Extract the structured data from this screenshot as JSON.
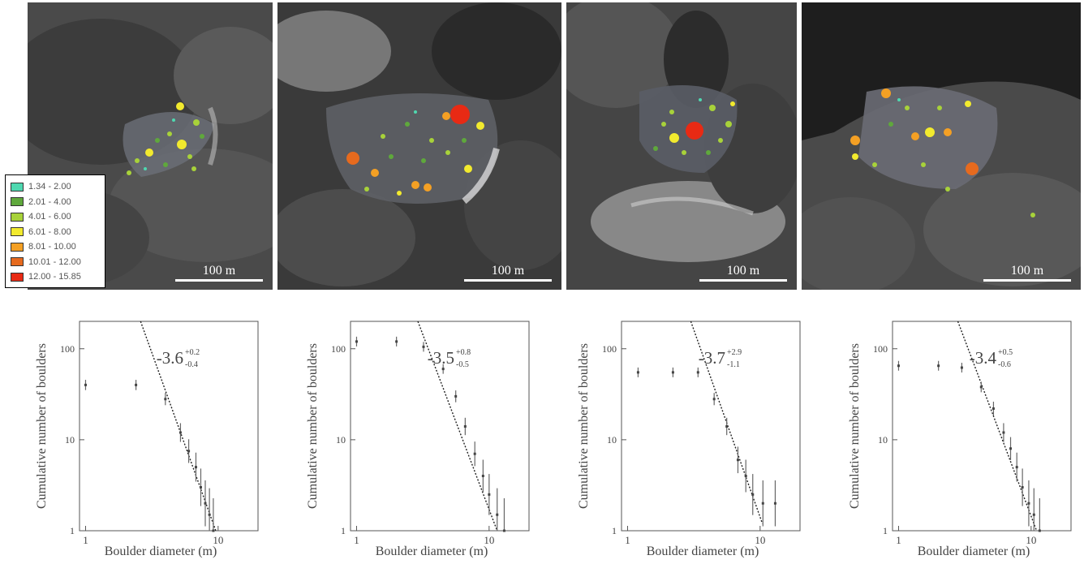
{
  "legend": {
    "items": [
      {
        "label": "1.34 - 2.00",
        "color": "#4fd8b0"
      },
      {
        "label": "2.01 - 4.00",
        "color": "#5fa83c"
      },
      {
        "label": "4.01 - 6.00",
        "color": "#a8d23a"
      },
      {
        "label": "6.01 - 8.00",
        "color": "#f2ea2e"
      },
      {
        "label": "8.01 - 10.00",
        "color": "#f4a024"
      },
      {
        "label": "10.01 - 12.00",
        "color": "#e66a1e"
      },
      {
        "label": "12.00 - 15.85",
        "color": "#e82a14"
      }
    ]
  },
  "panels": [
    {
      "scale_label": "100 m"
    },
    {
      "scale_label": "100 m"
    },
    {
      "scale_label": "100 m"
    },
    {
      "scale_label": "100 m"
    }
  ],
  "chart_data": [
    {
      "type": "scatter",
      "xlabel": "Boulder diameter (m)",
      "ylabel": "Cumulative number of boulders",
      "xscale": "log",
      "yscale": "log",
      "xlim": [
        0.9,
        20
      ],
      "ylim": [
        1,
        200
      ],
      "xticks": [
        {
          "v": 1,
          "label": "1"
        },
        {
          "v": 10,
          "label": "10"
        }
      ],
      "yticks": [
        {
          "v": 1,
          "label": "1"
        },
        {
          "v": 10,
          "label": "10"
        },
        {
          "v": 100,
          "label": "100"
        }
      ],
      "slope": {
        "value": "-3.6",
        "sup": "+0.2",
        "sub": "-0.4"
      },
      "points": [
        {
          "x": 1.0,
          "y": 40
        },
        {
          "x": 2.4,
          "y": 40
        },
        {
          "x": 4.0,
          "y": 28
        },
        {
          "x": 5.2,
          "y": 12
        },
        {
          "x": 6.0,
          "y": 7.5
        },
        {
          "x": 6.8,
          "y": 5
        },
        {
          "x": 7.4,
          "y": 3
        },
        {
          "x": 8.0,
          "y": 2
        },
        {
          "x": 8.6,
          "y": 1.5
        },
        {
          "x": 9.2,
          "y": 1
        }
      ],
      "fit": [
        {
          "x": 2.6,
          "y": 200
        },
        {
          "x": 9.6,
          "y": 1
        }
      ]
    },
    {
      "type": "scatter",
      "xlabel": "Boulder diameter (m)",
      "ylabel": "Cumulative number of boulders",
      "xscale": "log",
      "yscale": "log",
      "xlim": [
        0.9,
        20
      ],
      "ylim": [
        1,
        200
      ],
      "xticks": [
        {
          "v": 1,
          "label": "1"
        },
        {
          "v": 10,
          "label": "10"
        }
      ],
      "yticks": [
        {
          "v": 1,
          "label": "1"
        },
        {
          "v": 10,
          "label": "10"
        },
        {
          "v": 100,
          "label": "100"
        }
      ],
      "slope": {
        "value": "-3.5",
        "sup": "+0.8",
        "sub": "-0.5"
      },
      "points": [
        {
          "x": 1.0,
          "y": 120
        },
        {
          "x": 2.0,
          "y": 120
        },
        {
          "x": 3.2,
          "y": 105
        },
        {
          "x": 4.5,
          "y": 60
        },
        {
          "x": 5.6,
          "y": 30
        },
        {
          "x": 6.6,
          "y": 14
        },
        {
          "x": 7.8,
          "y": 7
        },
        {
          "x": 9.0,
          "y": 4
        },
        {
          "x": 10.0,
          "y": 2.5
        },
        {
          "x": 11.5,
          "y": 1.5
        },
        {
          "x": 13.0,
          "y": 1
        }
      ],
      "fit": [
        {
          "x": 2.9,
          "y": 200
        },
        {
          "x": 11.5,
          "y": 1
        }
      ]
    },
    {
      "type": "scatter",
      "xlabel": "Boulder diameter (m)",
      "ylabel": "Cumulative number of boulders",
      "xscale": "log",
      "yscale": "log",
      "xlim": [
        0.9,
        20
      ],
      "ylim": [
        1,
        200
      ],
      "xticks": [
        {
          "v": 1,
          "label": "1"
        },
        {
          "v": 10,
          "label": "10"
        }
      ],
      "yticks": [
        {
          "v": 1,
          "label": "1"
        },
        {
          "v": 10,
          "label": "10"
        },
        {
          "v": 100,
          "label": "100"
        }
      ],
      "slope": {
        "value": "-3.7",
        "sup": "+2.9",
        "sub": "-1.1"
      },
      "points": [
        {
          "x": 1.2,
          "y": 55
        },
        {
          "x": 2.2,
          "y": 55
        },
        {
          "x": 3.4,
          "y": 55
        },
        {
          "x": 4.5,
          "y": 28
        },
        {
          "x": 5.6,
          "y": 14
        },
        {
          "x": 6.8,
          "y": 6
        },
        {
          "x": 7.8,
          "y": 4
        },
        {
          "x": 8.8,
          "y": 2.5
        },
        {
          "x": 10.5,
          "y": 2
        },
        {
          "x": 13.0,
          "y": 2
        }
      ],
      "fit": [
        {
          "x": 3.0,
          "y": 200
        },
        {
          "x": 10.4,
          "y": 1.2
        }
      ]
    },
    {
      "type": "scatter",
      "xlabel": "Boulder diameter (m)",
      "ylabel": "Cumulative number of boulders",
      "xscale": "log",
      "yscale": "log",
      "xlim": [
        0.9,
        20
      ],
      "ylim": [
        1,
        200
      ],
      "xticks": [
        {
          "v": 1,
          "label": "1"
        },
        {
          "v": 10,
          "label": "10"
        }
      ],
      "yticks": [
        {
          "v": 1,
          "label": "1"
        },
        {
          "v": 10,
          "label": "10"
        },
        {
          "v": 100,
          "label": "100"
        }
      ],
      "slope": {
        "value": "-3.4",
        "sup": "+0.5",
        "sub": "-0.6"
      },
      "points": [
        {
          "x": 1.0,
          "y": 65
        },
        {
          "x": 2.0,
          "y": 65
        },
        {
          "x": 3.0,
          "y": 62
        },
        {
          "x": 4.2,
          "y": 38
        },
        {
          "x": 5.2,
          "y": 22
        },
        {
          "x": 6.2,
          "y": 12
        },
        {
          "x": 7.0,
          "y": 8
        },
        {
          "x": 7.8,
          "y": 5
        },
        {
          "x": 8.6,
          "y": 3
        },
        {
          "x": 9.6,
          "y": 2
        },
        {
          "x": 10.5,
          "y": 1.5
        },
        {
          "x": 11.6,
          "y": 1
        }
      ],
      "fit": [
        {
          "x": 2.8,
          "y": 200
        },
        {
          "x": 11.0,
          "y": 1
        }
      ]
    }
  ]
}
